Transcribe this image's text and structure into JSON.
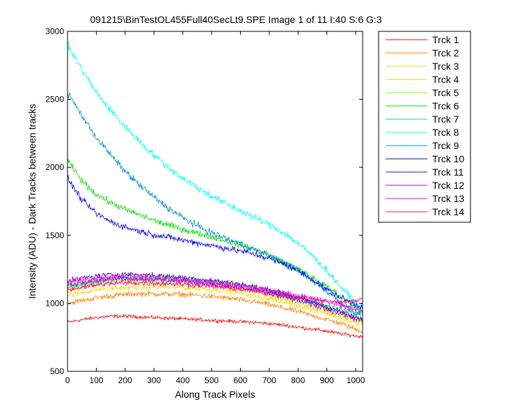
{
  "chart_data": {
    "type": "line",
    "title": "091215\\BinTestOL455Full40SecLt9.SPE  Image 1 of 11  I:40  S:6  G:3",
    "xlabel": "Along Track Pixels",
    "ylabel": "Intensity (ADU) - Dark Tracks between tracks",
    "xlim": [
      0,
      1024
    ],
    "ylim": [
      500,
      3000
    ],
    "xticks": [
      0,
      100,
      200,
      300,
      400,
      500,
      600,
      700,
      800,
      900,
      1000
    ],
    "yticks": [
      500,
      1000,
      1500,
      2000,
      2500,
      3000
    ],
    "grid": false,
    "legend_position": "outside-right",
    "x": [
      0,
      50,
      100,
      150,
      200,
      250,
      300,
      350,
      400,
      450,
      500,
      550,
      600,
      650,
      700,
      750,
      800,
      850,
      900,
      950,
      1000,
      1024
    ],
    "series": [
      {
        "name": "Trck 1",
        "color": "#ff0000",
        "noise": 20,
        "values": [
          860,
          880,
          895,
          905,
          905,
          900,
          895,
          890,
          885,
          880,
          875,
          870,
          865,
          860,
          850,
          840,
          825,
          810,
          795,
          775,
          760,
          755
        ]
      },
      {
        "name": "Trck 2",
        "color": "#ff7f00",
        "noise": 30,
        "values": [
          1000,
          1020,
          1040,
          1055,
          1065,
          1070,
          1070,
          1068,
          1065,
          1060,
          1050,
          1040,
          1025,
          1010,
          990,
          965,
          940,
          910,
          880,
          850,
          810,
          795
        ]
      },
      {
        "name": "Trck 3",
        "color": "#ffd700",
        "noise": 30,
        "values": [
          1060,
          1080,
          1100,
          1110,
          1115,
          1118,
          1120,
          1118,
          1115,
          1110,
          1100,
          1090,
          1075,
          1055,
          1035,
          1010,
          985,
          955,
          925,
          890,
          855,
          840
        ]
      },
      {
        "name": "Trck 4",
        "color": "#c8e000",
        "noise": 30,
        "values": [
          1090,
          1115,
          1140,
          1155,
          1160,
          1160,
          1158,
          1155,
          1150,
          1145,
          1135,
          1120,
          1105,
          1085,
          1060,
          1035,
          1005,
          975,
          945,
          910,
          880,
          865
        ]
      },
      {
        "name": "Trck 5",
        "color": "#80ff00",
        "noise": 30,
        "values": [
          1120,
          1150,
          1170,
          1185,
          1190,
          1190,
          1188,
          1185,
          1180,
          1172,
          1162,
          1150,
          1135,
          1115,
          1092,
          1065,
          1035,
          1002,
          968,
          932,
          895,
          880
        ]
      },
      {
        "name": "Trck 6",
        "color": "#00e000",
        "noise": 35,
        "values": [
          2050,
          1900,
          1800,
          1740,
          1690,
          1650,
          1610,
          1575,
          1545,
          1515,
          1490,
          1460,
          1430,
          1395,
          1355,
          1305,
          1250,
          1190,
          1120,
          1050,
          970,
          930
        ]
      },
      {
        "name": "Trck 7",
        "color": "#00d890",
        "noise": 30,
        "values": [
          1110,
          1140,
          1160,
          1175,
          1180,
          1180,
          1178,
          1175,
          1170,
          1162,
          1152,
          1140,
          1125,
          1105,
          1085,
          1060,
          1035,
          1010,
          985,
          960,
          935,
          925
        ]
      },
      {
        "name": "Trck 8",
        "color": "#00ffff",
        "noise": 40,
        "values": [
          2900,
          2720,
          2550,
          2420,
          2300,
          2190,
          2090,
          2000,
          1920,
          1850,
          1790,
          1730,
          1680,
          1630,
          1580,
          1520,
          1440,
          1350,
          1240,
          1120,
          1000,
          960
        ]
      },
      {
        "name": "Trck 9",
        "color": "#0090d8",
        "noise": 40,
        "values": [
          2550,
          2380,
          2220,
          2090,
          1970,
          1870,
          1780,
          1700,
          1630,
          1570,
          1520,
          1475,
          1435,
          1395,
          1350,
          1300,
          1240,
          1170,
          1090,
          1005,
          925,
          895
        ]
      },
      {
        "name": "Trck 10",
        "color": "#0000ff",
        "noise": 35,
        "values": [
          1920,
          1760,
          1660,
          1600,
          1560,
          1530,
          1505,
          1485,
          1465,
          1445,
          1425,
          1405,
          1385,
          1360,
          1330,
          1290,
          1240,
          1175,
          1100,
          1040,
          990,
          975
        ]
      },
      {
        "name": "Trck 11",
        "color": "#5000c8",
        "noise": 30,
        "values": [
          1160,
          1185,
          1200,
          1210,
          1212,
          1210,
          1205,
          1198,
          1190,
          1180,
          1168,
          1155,
          1140,
          1120,
          1098,
          1072,
          1043,
          1010,
          975,
          935,
          895,
          880
        ]
      },
      {
        "name": "Trck 12",
        "color": "#a000ff",
        "noise": 30,
        "values": [
          1130,
          1155,
          1170,
          1180,
          1182,
          1180,
          1175,
          1170,
          1162,
          1152,
          1140,
          1127,
          1112,
          1094,
          1072,
          1048,
          1020,
          990,
          958,
          922,
          885,
          870
        ]
      },
      {
        "name": "Trck 13",
        "color": "#ff00ff",
        "noise": 30,
        "values": [
          1150,
          1170,
          1182,
          1190,
          1192,
          1190,
          1186,
          1180,
          1172,
          1163,
          1152,
          1140,
          1127,
          1112,
          1096,
          1078,
          1058,
          1036,
          1012,
          985,
          955,
          945
        ]
      },
      {
        "name": "Trck 14",
        "color": "#ff0080",
        "noise": 30,
        "values": [
          1100,
          1120,
          1135,
          1145,
          1150,
          1150,
          1148,
          1145,
          1140,
          1133,
          1125,
          1115,
          1103,
          1090,
          1075,
          1060,
          1045,
          1030,
          1015,
          1005,
          1020,
          1040
        ]
      }
    ]
  }
}
